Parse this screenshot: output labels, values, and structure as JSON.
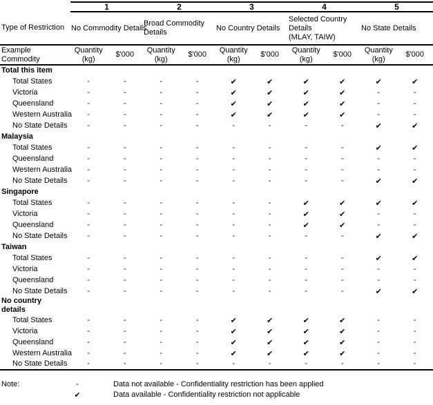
{
  "table": {
    "column_numbers": [
      "1",
      "2",
      "3",
      "4",
      "5"
    ],
    "type_of_restriction_label": "Type of Restriction",
    "restriction_types": [
      {
        "lines": [
          "No Commodity Details"
        ]
      },
      {
        "lines": [
          "Broad Commodity",
          "Details"
        ]
      },
      {
        "lines": [
          "No Country Details"
        ]
      },
      {
        "lines": [
          "Selected Country",
          "Details",
          "(MLAY, TAIW)"
        ]
      },
      {
        "lines": [
          "No State Details"
        ]
      }
    ],
    "example_commodity_label": "Example Commodity",
    "quantity_header_line1": "Quantity",
    "quantity_header_line2": "(kg)",
    "value_header": "$'000",
    "symbols": {
      "dash": "-",
      "check": "✔"
    },
    "groups": [
      {
        "name": "Total this item",
        "rows": [
          {
            "label": "Total States",
            "cells": [
              "-",
              "-",
              "-",
              "-",
              "✔",
              "✔",
              "✔",
              "✔",
              "✔",
              "✔"
            ]
          },
          {
            "label": "Victoria",
            "cells": [
              "-",
              "-",
              "-",
              "-",
              "✔",
              "✔",
              "✔",
              "✔",
              "-",
              "-"
            ]
          },
          {
            "label": "Queensland",
            "cells": [
              "-",
              "-",
              "-",
              "-",
              "✔",
              "✔",
              "✔",
              "✔",
              "-",
              "-"
            ]
          },
          {
            "label": "Western Australia",
            "cells": [
              "-",
              "-",
              "-",
              "-",
              "✔",
              "✔",
              "✔",
              "✔",
              "-",
              "-"
            ]
          },
          {
            "label": "No State Details",
            "cells": [
              "-",
              "-",
              "-",
              "-",
              "-",
              "-",
              "-",
              "-",
              "✔",
              "✔"
            ]
          }
        ]
      },
      {
        "name": "Malaysia",
        "rows": [
          {
            "label": "Total States",
            "cells": [
              "-",
              "-",
              "-",
              "-",
              "-",
              "-",
              "-",
              "-",
              "✔",
              "✔"
            ]
          },
          {
            "label": "Queensland",
            "cells": [
              "-",
              "-",
              "-",
              "-",
              "-",
              "-",
              "-",
              "-",
              "-",
              "-"
            ]
          },
          {
            "label": "Western Australia",
            "cells": [
              "-",
              "-",
              "-",
              "-",
              "-",
              "-",
              "-",
              "-",
              "-",
              "-"
            ]
          },
          {
            "label": "No State Details",
            "cells": [
              "-",
              "-",
              "-",
              "-",
              "-",
              "-",
              "-",
              "-",
              "✔",
              "✔"
            ]
          }
        ]
      },
      {
        "name": "Singapore",
        "rows": [
          {
            "label": "Total States",
            "cells": [
              "-",
              "-",
              "-",
              "-",
              "-",
              "-",
              "✔",
              "✔",
              "✔",
              "✔"
            ]
          },
          {
            "label": "Victoria",
            "cells": [
              "-",
              "-",
              "-",
              "-",
              "-",
              "-",
              "✔",
              "✔",
              "-",
              "-"
            ]
          },
          {
            "label": "Queensland",
            "cells": [
              "-",
              "-",
              "-",
              "-",
              "-",
              "-",
              "✔",
              "✔",
              "-",
              "-"
            ]
          },
          {
            "label": "No State Details",
            "cells": [
              "-",
              "-",
              "-",
              "-",
              "-",
              "-",
              "-",
              "-",
              "✔",
              "✔"
            ]
          }
        ]
      },
      {
        "name": "Taiwan",
        "rows": [
          {
            "label": "Total States",
            "cells": [
              "-",
              "-",
              "-",
              "-",
              "-",
              "-",
              "-",
              "-",
              "✔",
              "✔"
            ]
          },
          {
            "label": "Victoria",
            "cells": [
              "-",
              "-",
              "-",
              "-",
              "-",
              "-",
              "-",
              "-",
              "-",
              "-"
            ]
          },
          {
            "label": "Queensland",
            "cells": [
              "-",
              "-",
              "-",
              "-",
              "-",
              "-",
              "-",
              "-",
              "-",
              "-"
            ]
          },
          {
            "label": "No State Details",
            "cells": [
              "-",
              "-",
              "-",
              "-",
              "-",
              "-",
              "-",
              "-",
              "✔",
              "✔"
            ]
          }
        ]
      },
      {
        "name": "No country details",
        "rows": [
          {
            "label": "Total States",
            "cells": [
              "-",
              "-",
              "-",
              "-",
              "✔",
              "✔",
              "✔",
              "✔",
              "-",
              "-"
            ]
          },
          {
            "label": "Victoria",
            "cells": [
              "-",
              "-",
              "-",
              "-",
              "✔",
              "✔",
              "✔",
              "✔",
              "-",
              "-"
            ]
          },
          {
            "label": "Queensland",
            "cells": [
              "-",
              "-",
              "-",
              "-",
              "✔",
              "✔",
              "✔",
              "✔",
              "-",
              "-"
            ]
          },
          {
            "label": "Western Australia",
            "cells": [
              "-",
              "-",
              "-",
              "-",
              "✔",
              "✔",
              "✔",
              "✔",
              "-",
              "-"
            ]
          },
          {
            "label": "No State Details",
            "cells": [
              "-",
              "-",
              "-",
              "-",
              "-",
              "-",
              "-",
              "-",
              "-",
              "-"
            ]
          }
        ]
      }
    ]
  },
  "note": {
    "label": "Note:",
    "items": [
      {
        "symbol": "-",
        "text": "Data not available - Confidentiality restriction has been applied"
      },
      {
        "symbol": "✔",
        "text": "Data available - Confidentiality restriction not applicable"
      }
    ]
  }
}
